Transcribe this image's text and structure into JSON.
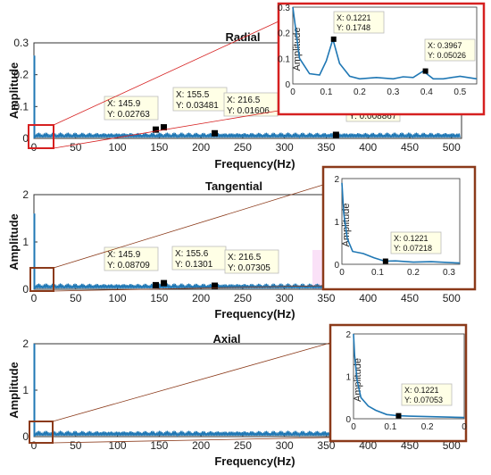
{
  "chart_data": [
    {
      "type": "line",
      "title": "Radial",
      "xlabel": "Frequency(Hz)",
      "ylabel": "Amplitude",
      "xlim": [
        0,
        512
      ],
      "ylim": [
        0,
        0.3
      ],
      "xticks": [
        "0",
        "50",
        "100",
        "150",
        "200",
        "250",
        "300",
        "350",
        "400",
        "450",
        "500"
      ],
      "yticks": [
        "0",
        "0.1",
        "0.2",
        "0.3"
      ],
      "series": [
        {
          "x": [
            0,
            0.12,
            0.25,
            2,
            10,
            50,
            100,
            145.9,
            155.5,
            216.5,
            300,
            361.7,
            450,
            505
          ],
          "y": [
            0.26,
            0.17,
            0.05,
            0.02,
            0.015,
            0.012,
            0.012,
            0.02763,
            0.03481,
            0.01606,
            0.01,
            0.008867,
            0.008,
            0.007
          ]
        }
      ],
      "datatips": [
        {
          "x": 145.9,
          "y": 0.02763,
          "xtext": "X: 145.9",
          "ytext": "Y: 0.02763"
        },
        {
          "x": 155.5,
          "y": 0.03481,
          "xtext": "X: 155.5",
          "ytext": "Y: 0.03481"
        },
        {
          "x": 216.5,
          "y": 0.01606,
          "xtext": "X: 216.5",
          "ytext": "Y: 0.01606"
        },
        {
          "x": 361.7,
          "y": 0.008867,
          "xtext": "X: 361.7",
          "ytext": "Y: 0.008867"
        }
      ],
      "inset": {
        "ylabel": "Amplitude",
        "xlim": [
          0,
          0.55
        ],
        "ylim": [
          0,
          0.3
        ],
        "xticks": [
          "0",
          "0.1",
          "0.2",
          "0.3",
          "0.4",
          "0.5"
        ],
        "yticks": [
          "0",
          "0.1",
          "0.2",
          "0.3"
        ],
        "series": [
          {
            "x": [
              0,
              0.02,
              0.05,
              0.08,
              0.1,
              0.12,
              0.14,
              0.17,
              0.2,
              0.25,
              0.3,
              0.33,
              0.36,
              0.39,
              0.42,
              0.45,
              0.5,
              0.55
            ],
            "y": [
              0.3,
              0.1,
              0.04,
              0.035,
              0.09,
              0.1748,
              0.08,
              0.03,
              0.02,
              0.025,
              0.02,
              0.028,
              0.025,
              0.05026,
              0.02,
              0.02,
              0.03,
              0.02
            ]
          }
        ],
        "datatips": [
          {
            "x": 0.1221,
            "y": 0.1748,
            "xtext": "X: 0.1221",
            "ytext": "Y: 0.1748"
          },
          {
            "x": 0.3967,
            "y": 0.05026,
            "xtext": "X: 0.3967",
            "ytext": "Y: 0.05026"
          }
        ]
      },
      "colors": {
        "line": "#1f77b4",
        "highlight": "#d62020"
      }
    },
    {
      "type": "line",
      "title": "Tangential",
      "xlabel": "Frequency(Hz)",
      "ylabel": "Amplitude",
      "xlim": [
        0,
        512
      ],
      "ylim": [
        0,
        2
      ],
      "xticks": [
        "0",
        "50",
        "100",
        "150",
        "200",
        "250",
        "300",
        "350",
        "400",
        "450",
        "500"
      ],
      "yticks": [
        "0",
        "1",
        "2"
      ],
      "series": [
        {
          "x": [
            0,
            0.02,
            0.1,
            2,
            10,
            50,
            100,
            145.9,
            155.6,
            216.5,
            300,
            400,
            505
          ],
          "y": [
            1.6,
            0.7,
            0.2,
            0.05,
            0.04,
            0.03,
            0.03,
            0.08709,
            0.1301,
            0.07305,
            0.03,
            0.03,
            0.02
          ]
        }
      ],
      "datatips": [
        {
          "x": 145.9,
          "y": 0.08709,
          "xtext": "X: 145.9",
          "ytext": "Y: 0.08709"
        },
        {
          "x": 155.6,
          "y": 0.1301,
          "xtext": "X: 155.6",
          "ytext": "Y: 0.1301"
        },
        {
          "x": 216.5,
          "y": 0.07305,
          "xtext": "X: 216.5",
          "ytext": "Y: 0.07305"
        }
      ],
      "inset": {
        "ylabel": "Amplitude",
        "xlim": [
          0,
          0.33
        ],
        "ylim": [
          0,
          2
        ],
        "xticks": [
          "0",
          "0.1",
          "0.2",
          "0.3"
        ],
        "yticks": [
          "0",
          "1",
          "2"
        ],
        "series": [
          {
            "x": [
              0,
              0.005,
              0.015,
              0.03,
              0.06,
              0.09,
              0.12,
              0.15,
              0.2,
              0.25,
              0.3,
              0.33
            ],
            "y": [
              1.9,
              1.2,
              0.6,
              0.3,
              0.25,
              0.15,
              0.07218,
              0.08,
              0.05,
              0.06,
              0.04,
              0.03
            ]
          }
        ],
        "datatips": [
          {
            "x": 0.1221,
            "y": 0.07218,
            "xtext": "X: 0.1221",
            "ytext": "Y: 0.07218"
          }
        ]
      },
      "colors": {
        "line": "#1f77b4",
        "highlight": "#8b3a1a",
        "shade": "#f6c8f0"
      }
    },
    {
      "type": "line",
      "title": "Axial",
      "xlabel": "Frequency(Hz)",
      "ylabel": "Amplitude",
      "xlim": [
        0,
        512
      ],
      "ylim": [
        0,
        2
      ],
      "xticks": [
        "0",
        "50",
        "100",
        "150",
        "200",
        "250",
        "300",
        "350",
        "400",
        "450",
        "500"
      ],
      "yticks": [
        "0",
        "1",
        "2"
      ],
      "series": [
        {
          "x": [
            0,
            0.02,
            0.1,
            2,
            10,
            100,
            200,
            300,
            400,
            505
          ],
          "y": [
            2.0,
            0.8,
            0.2,
            0.04,
            0.03,
            0.02,
            0.02,
            0.02,
            0.02,
            0.02
          ]
        }
      ],
      "datatips": [],
      "inset": {
        "ylabel": "Amplitude",
        "xlim": [
          0,
          0.3
        ],
        "ylim": [
          0,
          2
        ],
        "xticks": [
          "0",
          "0.1",
          "0.2",
          "0"
        ],
        "yticks": [
          "0",
          "1",
          "2"
        ],
        "series": [
          {
            "x": [
              0,
              0.003,
              0.01,
              0.02,
              0.04,
              0.06,
              0.09,
              0.12,
              0.15,
              0.2,
              0.25,
              0.3
            ],
            "y": [
              2.0,
              1.5,
              0.9,
              0.5,
              0.3,
              0.2,
              0.1,
              0.07053,
              0.06,
              0.05,
              0.04,
              0.03
            ]
          }
        ],
        "datatips": [
          {
            "x": 0.1221,
            "y": 0.07053,
            "xtext": "X: 0.1221",
            "ytext": "Y: 0.07053"
          }
        ]
      },
      "colors": {
        "line": "#1f77b4",
        "highlight": "#8b3a1a",
        "shade": "#f6c8f0"
      }
    }
  ]
}
